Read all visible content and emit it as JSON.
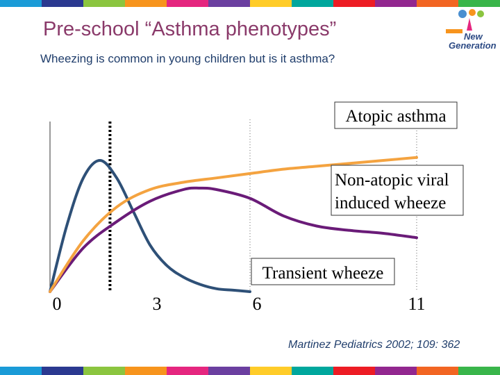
{
  "slide": {
    "title": "Pre-school “Asthma phenotypes”",
    "subtitle": "Wheezing is common in young children but is it asthma?",
    "citation": "Martinez Pediatrics 2002; 109: 362"
  },
  "logo": {
    "line1": "New",
    "line2": "Generation",
    "icon": "children-figures-logo"
  },
  "colors": {
    "stripe": [
      "#1a9bd7",
      "#2b3990",
      "#8bc53f",
      "#f7941d",
      "#e5267f",
      "#6b3fa0",
      "#ffcc29",
      "#00a79d",
      "#ed1c24",
      "#92278f",
      "#f26522",
      "#39b54a"
    ],
    "title": "#8a3a6a",
    "transient": "#2e5077",
    "atopic": "#f4a340",
    "nonatopic": "#6a1b78"
  },
  "chart_data": {
    "type": "line",
    "xlabel": "",
    "ylabel": "",
    "x_ticks": [
      "0",
      "3",
      "6",
      "11"
    ],
    "x_tick_values": [
      0,
      3,
      6,
      11
    ],
    "xlim": [
      0,
      11
    ],
    "ylim": [
      0,
      100
    ],
    "series": [
      {
        "name": "Transient wheeze",
        "color": "#2e5077",
        "x": [
          0,
          0.5,
          1.0,
          1.5,
          2.0,
          2.5,
          3.0,
          3.5,
          4.0,
          4.5,
          5.0,
          5.5,
          6.0
        ],
        "y": [
          0,
          45,
          78,
          90,
          78,
          55,
          32,
          18,
          10,
          5,
          2,
          1,
          0
        ]
      },
      {
        "name": "Non-atopic viral induced wheeze",
        "color": "#6a1b78",
        "x": [
          0,
          1.0,
          2.0,
          3.0,
          4.0,
          4.5,
          5.0,
          6.0,
          7.0,
          8.0,
          9.0,
          10.0,
          11.0
        ],
        "y": [
          0,
          30,
          48,
          62,
          70,
          71,
          70,
          64,
          52,
          45,
          42,
          40,
          37
        ]
      },
      {
        "name": "Atopic asthma",
        "color": "#f4a340",
        "x": [
          0,
          1.0,
          2.0,
          3.0,
          4.0,
          5.0,
          6.0,
          7.0,
          8.0,
          9.0,
          10.0,
          11.0
        ],
        "y": [
          0,
          35,
          58,
          70,
          75,
          78,
          81,
          84,
          86,
          88,
          90,
          92
        ]
      }
    ],
    "labels": [
      "Atopic asthma",
      "Non-atopic viral induced wheeze",
      "Transient wheeze"
    ],
    "reference_lines": [
      {
        "x": 1.8,
        "style": "dashed-thick"
      },
      {
        "x": 6,
        "style": "dotted"
      },
      {
        "x": 11,
        "style": "dotted"
      }
    ],
    "grid": false,
    "legend": "inline-labels"
  }
}
